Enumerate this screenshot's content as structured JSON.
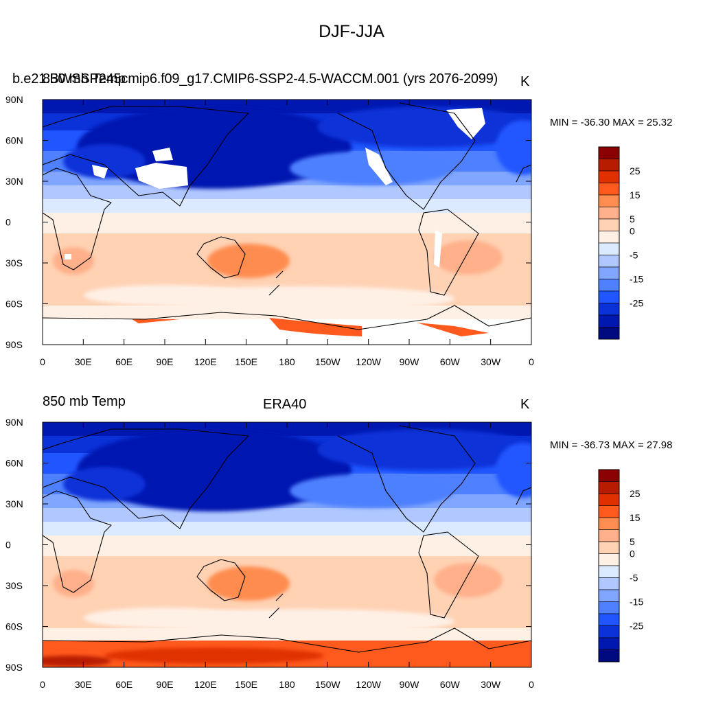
{
  "figure": {
    "title": "DJF-JJA"
  },
  "panels": [
    {
      "left_label": "b.e21.BWSSP245cmip6.f09_g17.CMIP6-SSP2-4.5-WACCM.001 (yrs 2076-2099)",
      "left_label_overlap": "850 mb Temp",
      "center_label": "",
      "right_label": "K",
      "min_max": "MIN = -36.30 MAX =  25.32",
      "missing_mask": true
    },
    {
      "left_label": "850 mb Temp",
      "center_label": "ERA40",
      "right_label": "K",
      "min_max": "MIN = -36.73 MAX =  27.98",
      "missing_mask": false
    }
  ],
  "axes": {
    "lat_ticks": [
      "90N",
      "60N",
      "30N",
      "0",
      "30S",
      "60S",
      "90S"
    ],
    "lon_ticks": [
      "0",
      "30E",
      "60E",
      "90E",
      "120E",
      "150E",
      "180",
      "150W",
      "120W",
      "90W",
      "60W",
      "30W",
      "0"
    ]
  },
  "colorbar": {
    "labels": [
      "25",
      "15",
      "5",
      "0",
      "-5",
      "-15",
      "-25"
    ],
    "colors": [
      "#8b0000",
      "#b71c00",
      "#e03000",
      "#ff5a1e",
      "#ff8c50",
      "#ffb08a",
      "#ffd2b4",
      "#fff0e6",
      "#dceaff",
      "#b0c8ff",
      "#80a6ff",
      "#4e80ff",
      "#2056ff",
      "#0a32d8",
      "#0018b0",
      "#000a80"
    ]
  }
}
